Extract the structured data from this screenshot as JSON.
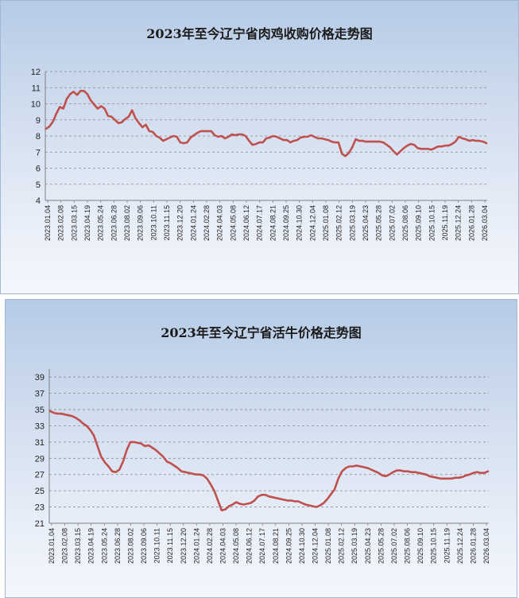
{
  "chart_data": [
    {
      "type": "line",
      "title": "2023年至今辽宁省肉鸡收购价格走势图",
      "xlabel": "",
      "ylabel": "",
      "ylim": [
        4,
        12
      ],
      "yticks": [
        4,
        5,
        6,
        7,
        8,
        9,
        10,
        11,
        12
      ],
      "grid": "horizontal-dashed",
      "color": "#c0504d",
      "x_tick_labels": [
        "2023.01.04",
        "2023.02.08",
        "2023.03.15",
        "2023.04.19",
        "2023.05.24",
        "2023.06.28",
        "2023.08.02",
        "2023.09.06",
        "2023.10.11",
        "2023.11.15",
        "2023.12.20",
        "2024.01.24",
        "2024.02.28",
        "2024.04.03",
        "2024.05.08",
        "2024.06.12",
        "2024.07.17",
        "2024.08.21",
        "2024.09.25",
        "2024.10.30",
        "2024.12.04",
        "2025.01.08",
        "2025.02.12",
        "2025.03.19",
        "2025.04.23",
        "2025.05.28",
        "2025.07.02",
        "2025.08.06",
        "2025.09.10",
        "2025.10.15",
        "2025.11.19",
        "2025.12.24",
        "2026.01.28",
        "2026.03.04"
      ],
      "values": [
        8.45,
        8.6,
        8.9,
        9.4,
        9.8,
        9.7,
        10.3,
        10.6,
        10.75,
        10.55,
        10.8,
        10.8,
        10.6,
        10.2,
        9.95,
        9.7,
        9.85,
        9.7,
        9.25,
        9.2,
        9.0,
        8.8,
        8.85,
        9.05,
        9.2,
        9.6,
        9.1,
        8.8,
        8.55,
        8.7,
        8.3,
        8.25,
        8.0,
        7.9,
        7.7,
        7.8,
        7.9,
        8.0,
        7.95,
        7.6,
        7.55,
        7.6,
        7.9,
        8.05,
        8.2,
        8.3,
        8.3,
        8.3,
        8.3,
        8.05,
        7.95,
        8.0,
        7.85,
        7.95,
        8.1,
        8.05,
        8.1,
        8.1,
        8.0,
        7.7,
        7.45,
        7.5,
        7.6,
        7.6,
        7.85,
        7.9,
        8.0,
        7.95,
        7.85,
        7.75,
        7.75,
        7.6,
        7.7,
        7.75,
        7.9,
        7.95,
        7.95,
        8.05,
        7.95,
        7.85,
        7.85,
        7.8,
        7.75,
        7.65,
        7.6,
        7.6,
        6.9,
        6.75,
        6.95,
        7.3,
        7.8,
        7.7,
        7.7,
        7.65,
        7.65,
        7.65,
        7.65,
        7.65,
        7.6,
        7.45,
        7.3,
        7.05,
        6.85,
        7.05,
        7.25,
        7.4,
        7.5,
        7.45,
        7.25,
        7.2,
        7.2,
        7.2,
        7.15,
        7.25,
        7.35,
        7.35,
        7.4,
        7.4,
        7.5,
        7.65,
        7.95,
        7.85,
        7.8,
        7.7,
        7.75,
        7.7,
        7.7,
        7.65,
        7.55
      ]
    },
    {
      "type": "line",
      "title": "2023年至今辽宁省活牛价格走势图",
      "xlabel": "",
      "ylabel": "",
      "ylim": [
        21,
        40
      ],
      "yticks": [
        21,
        23,
        25,
        27,
        29,
        31,
        33,
        35,
        37,
        39
      ],
      "grid": "horizontal-dashed",
      "color": "#c0504d",
      "x_tick_labels": [
        "2023.01.04",
        "2023.02.08",
        "2023.03.15",
        "2023.04.19",
        "2023.05.24",
        "2023.06.28",
        "2023.08.02",
        "2023.09.06",
        "2023.10.11",
        "2023.11.15",
        "2023.12.20",
        "2024.01.24",
        "2024.02.28",
        "2024.04.03",
        "2024.05.08",
        "2024.06.12",
        "2024.07.17",
        "2024.08.21",
        "2024.09.25",
        "2024.10.30",
        "2024.12.04",
        "2025.01.08",
        "2025.02.12",
        "2025.03.19",
        "2025.04.23",
        "2025.05.28",
        "2025.07.02",
        "2025.08.06",
        "2025.09.10",
        "2025.10.15",
        "2025.11.19",
        "2025.12.24",
        "2026.01.28",
        "2026.03.04"
      ],
      "values": [
        34.8,
        34.6,
        34.5,
        34.5,
        34.4,
        34.3,
        34.2,
        34.0,
        33.7,
        33.3,
        33.0,
        32.5,
        31.8,
        30.5,
        29.2,
        28.5,
        28.0,
        27.4,
        27.3,
        27.6,
        28.6,
        30.0,
        31.0,
        31.0,
        30.9,
        30.8,
        30.5,
        30.6,
        30.3,
        30.0,
        29.6,
        29.2,
        28.6,
        28.4,
        28.1,
        27.8,
        27.4,
        27.3,
        27.2,
        27.1,
        27.0,
        27.0,
        26.9,
        26.5,
        25.8,
        25.0,
        23.8,
        22.6,
        22.7,
        23.1,
        23.3,
        23.6,
        23.4,
        23.3,
        23.4,
        23.5,
        23.8,
        24.3,
        24.5,
        24.5,
        24.3,
        24.2,
        24.1,
        24.0,
        23.9,
        23.8,
        23.8,
        23.7,
        23.7,
        23.5,
        23.3,
        23.2,
        23.1,
        23.0,
        23.2,
        23.5,
        24.0,
        24.6,
        25.2,
        26.5,
        27.4,
        27.8,
        28.0,
        28.0,
        28.1,
        28.0,
        27.9,
        27.8,
        27.6,
        27.4,
        27.2,
        26.9,
        26.8,
        27.0,
        27.3,
        27.5,
        27.5,
        27.4,
        27.4,
        27.3,
        27.3,
        27.2,
        27.1,
        27.0,
        26.8,
        26.7,
        26.6,
        26.5,
        26.5,
        26.5,
        26.5,
        26.6,
        26.6,
        26.7,
        26.9,
        27.0,
        27.2,
        27.3,
        27.2,
        27.2,
        27.4
      ]
    }
  ]
}
